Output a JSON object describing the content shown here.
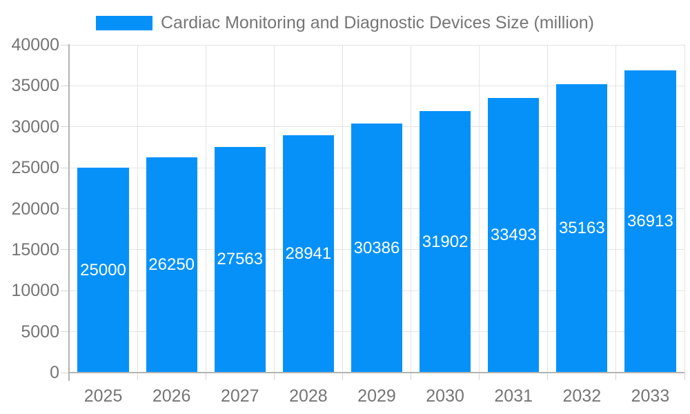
{
  "chart_data": {
    "type": "bar",
    "title": "Cardiac Monitoring and Diagnostic Devices Size (million)",
    "categories": [
      "2025",
      "2026",
      "2027",
      "2028",
      "2029",
      "2030",
      "2031",
      "2032",
      "2033"
    ],
    "values": [
      25000,
      26250,
      27563,
      28941,
      30386,
      31902,
      33493,
      35163,
      36913
    ],
    "xlabel": "",
    "ylabel": "",
    "ylim": [
      0,
      40000
    ],
    "yticks": [
      0,
      5000,
      10000,
      15000,
      20000,
      25000,
      30000,
      35000,
      40000
    ],
    "grid": true,
    "legend_position": "top-center",
    "value_label_position": "inside-center",
    "colors": {
      "bar": "#0691f9",
      "value_label": "#ffffff",
      "axis_text": "#757575",
      "gridline": "#e3e3e3",
      "tick": "#d4d4d4",
      "axis_line": "#b3b3b3",
      "background": "#ffffff"
    }
  }
}
